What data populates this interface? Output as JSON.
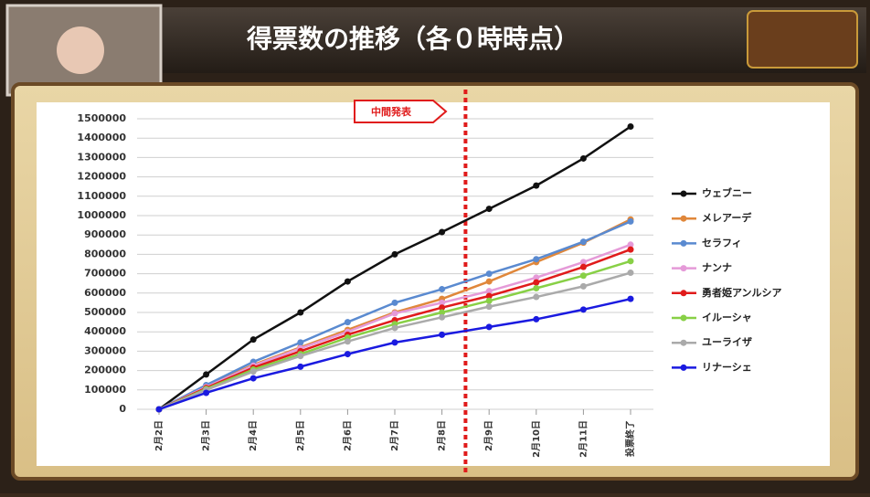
{
  "title": "得票数の推移（各０時時点）",
  "chart_data": {
    "type": "line",
    "annotation": "中間発表",
    "categories": [
      "2月2日",
      "2月3日",
      "2月4日",
      "2月5日",
      "2月6日",
      "2月7日",
      "2月8日",
      "2月9日",
      "2月10日",
      "2月11日",
      "投票終了"
    ],
    "series": [
      {
        "name": "ウェブニー",
        "color": "#111111",
        "values": [
          0,
          180000,
          360000,
          500000,
          660000,
          800000,
          915000,
          1035000,
          1155000,
          1295000,
          1460000
        ]
      },
      {
        "name": "メレアーデ",
        "color": "#e0873a",
        "values": [
          0,
          120000,
          230000,
          320000,
          410000,
          500000,
          570000,
          660000,
          760000,
          860000,
          980000
        ]
      },
      {
        "name": "セラフィ",
        "color": "#5a8ad0",
        "values": [
          0,
          125000,
          245000,
          345000,
          450000,
          550000,
          620000,
          700000,
          775000,
          865000,
          970000
        ]
      },
      {
        "name": "ナンナ",
        "color": "#e59ad8",
        "values": [
          0,
          115000,
          225000,
          315000,
          400000,
          495000,
          550000,
          610000,
          680000,
          760000,
          850000
        ]
      },
      {
        "name": "勇者姫アンルシア",
        "color": "#e01b1b",
        "values": [
          0,
          110000,
          215000,
          300000,
          385000,
          460000,
          525000,
          585000,
          655000,
          735000,
          825000
        ]
      },
      {
        "name": "イルーシャ",
        "color": "#88d046",
        "values": [
          0,
          105000,
          205000,
          285000,
          370000,
          440000,
          500000,
          560000,
          625000,
          690000,
          765000
        ]
      },
      {
        "name": "ユーライザ",
        "color": "#aaaaaa",
        "values": [
          0,
          100000,
          195000,
          275000,
          350000,
          420000,
          475000,
          530000,
          580000,
          635000,
          705000
        ]
      },
      {
        "name": "リナーシェ",
        "color": "#1a1ae0",
        "values": [
          0,
          85000,
          160000,
          220000,
          285000,
          345000,
          385000,
          425000,
          465000,
          515000,
          570000
        ]
      }
    ],
    "ylim": [
      0,
      1500000
    ],
    "yticks": [
      0,
      100000,
      200000,
      300000,
      400000,
      500000,
      600000,
      700000,
      800000,
      900000,
      1000000,
      1100000,
      1200000,
      1300000,
      1400000,
      1500000
    ],
    "grid": true,
    "legend": "right"
  }
}
